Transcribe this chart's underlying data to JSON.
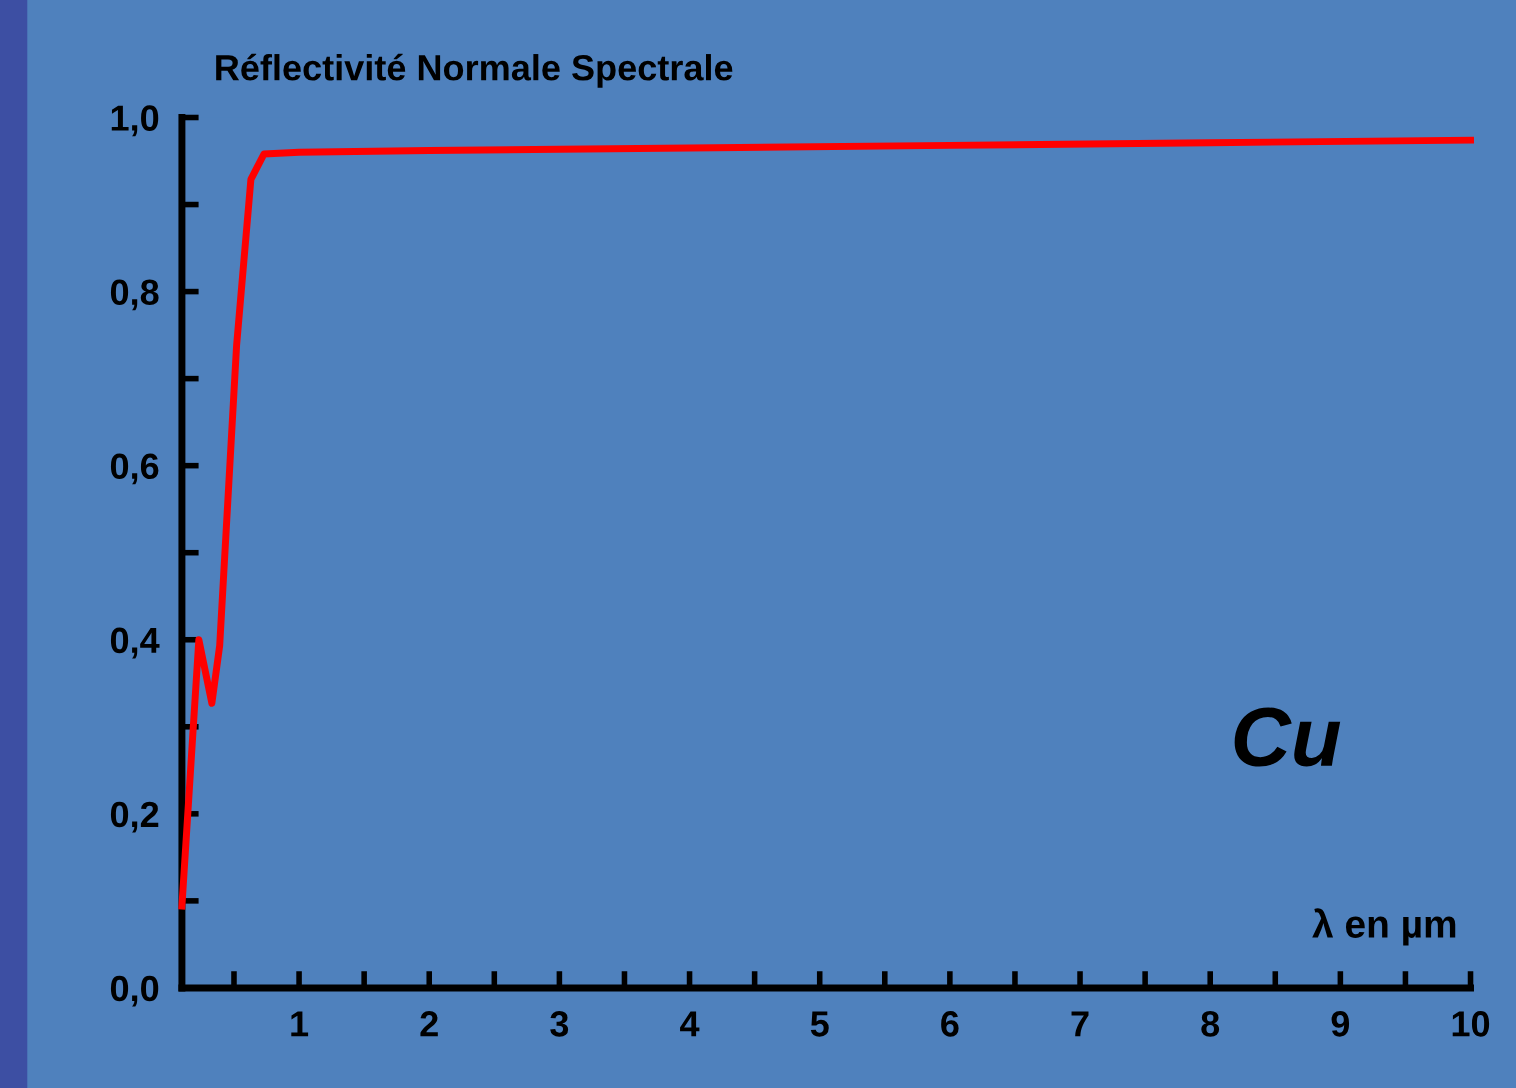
{
  "chart_data": {
    "type": "line",
    "title": "Réflectivité Normale Spectrale",
    "xlabel": "λ en µm",
    "annotations": [
      "Cu"
    ],
    "series": [
      {
        "color": "#ff0000",
        "x": [
          0.1,
          0.23,
          0.33,
          0.39,
          0.52,
          0.63,
          0.73,
          1,
          2,
          4,
          6,
          8,
          10
        ],
        "values": [
          0.094,
          0.4,
          0.327,
          0.393,
          0.738,
          0.929,
          0.958,
          0.96,
          0.962,
          0.965,
          0.968,
          0.971,
          0.974
        ]
      }
    ],
    "xlim": [
      0.1,
      10
    ],
    "ylim": [
      0,
      1.0
    ],
    "xticks": [
      {
        "value": 0.5,
        "label": null
      },
      1,
      {
        "value": 1.5,
        "label": null
      },
      2,
      {
        "value": 2.5,
        "label": null
      },
      3,
      {
        "value": 3.5,
        "label": null
      },
      4,
      {
        "value": 4.5,
        "label": null
      },
      5,
      {
        "value": 5.5,
        "label": null
      },
      6,
      {
        "value": 6.5,
        "label": null
      },
      7,
      {
        "value": 7.5,
        "label": null
      },
      8,
      {
        "value": 8.5,
        "label": null
      },
      9,
      {
        "value": 9.5,
        "label": null
      },
      10
    ],
    "yticks": [
      {
        "value": 0,
        "label": "0,0"
      },
      {
        "value": 0.1,
        "label": null
      },
      {
        "value": 0.2,
        "label": "0,2"
      },
      {
        "value": 0.3,
        "label": null
      },
      {
        "value": 0.4,
        "label": "0,4"
      },
      {
        "value": 0.5,
        "label": null
      },
      {
        "value": 0.6,
        "label": "0,6"
      },
      {
        "value": 0.7,
        "label": null
      },
      {
        "value": 0.8,
        "label": "0,8"
      },
      {
        "value": 0.9,
        "label": null
      },
      {
        "value": 1.0,
        "label": "1,0"
      }
    ],
    "grid": false,
    "legend": false,
    "marker": "none",
    "line_style": "solid"
  }
}
